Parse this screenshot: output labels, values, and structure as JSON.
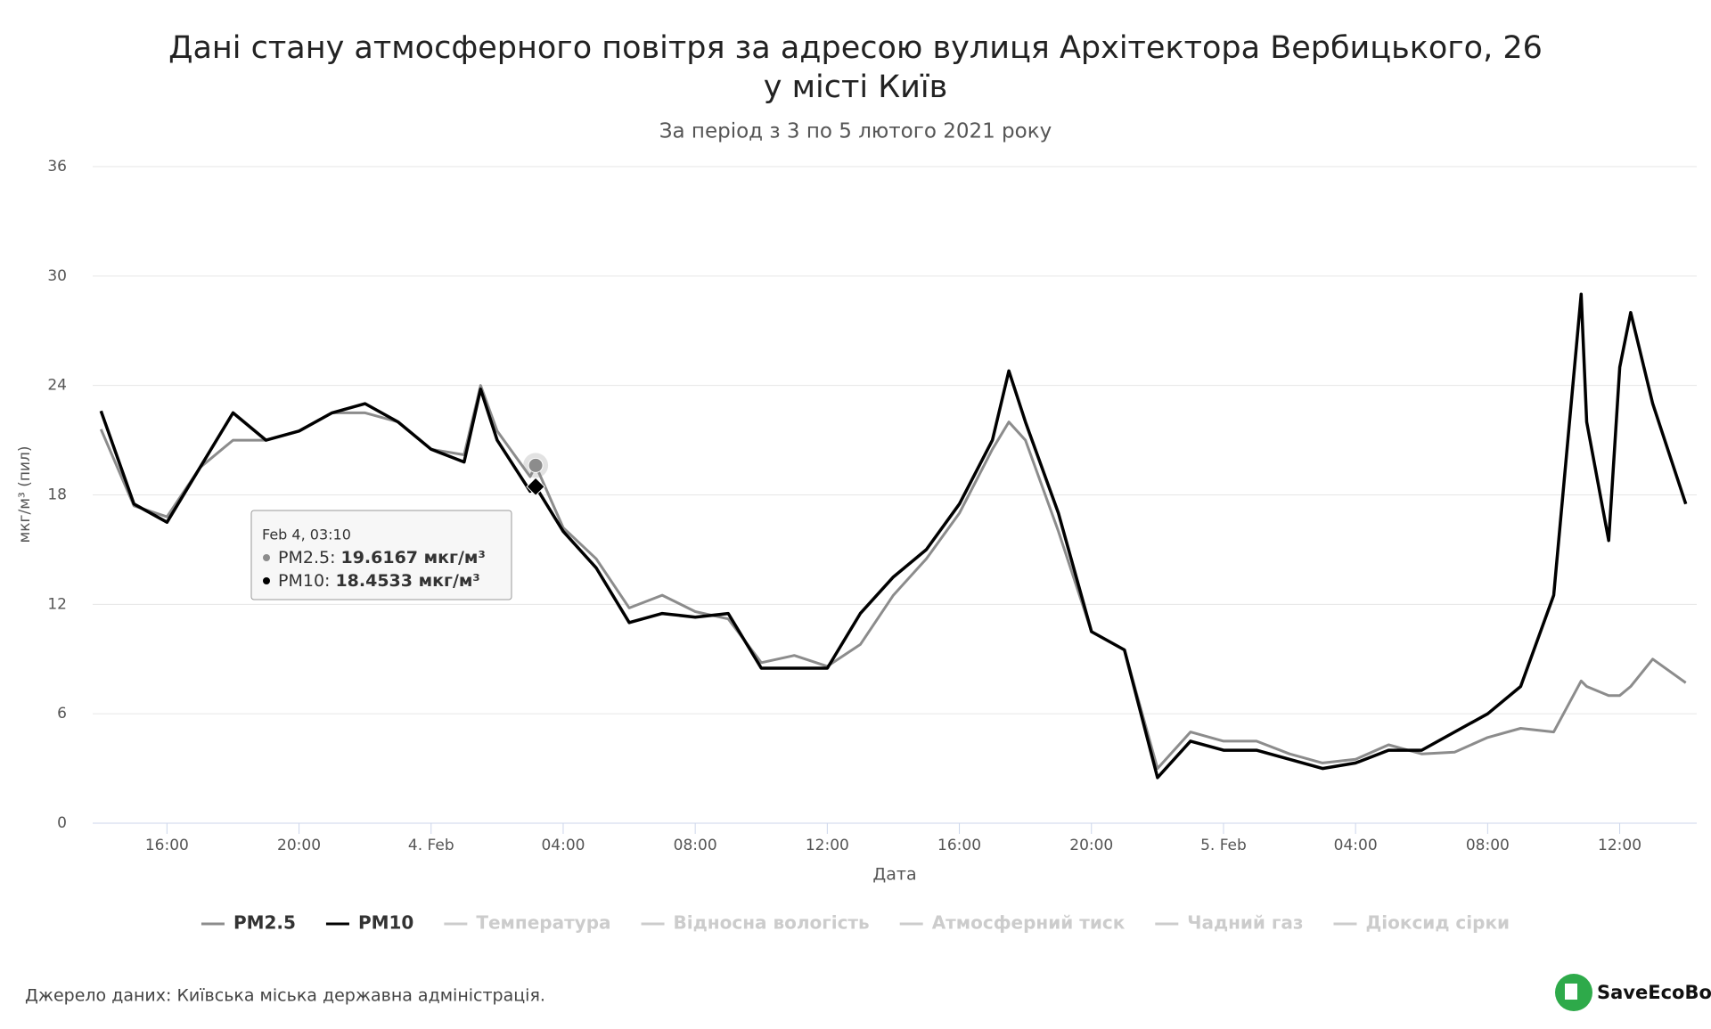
{
  "chart_data": {
    "type": "line",
    "title": [
      "Дані стану атмосферного повітря за адресою вулиця Архітектора Вербицького, 26",
      "у місті Київ"
    ],
    "subtitle": "За період з 3 по 5 лютого 2021 року",
    "x_label": "Дата",
    "y_label": "мкг/м³ (пил)",
    "x": [
      "Feb 3, 14:00",
      "Feb 3, 15:00",
      "Feb 3, 16:00",
      "Feb 3, 17:00",
      "Feb 3, 18:00",
      "Feb 3, 19:00",
      "Feb 3, 20:00",
      "Feb 3, 21:00",
      "Feb 3, 22:00",
      "Feb 3, 23:00",
      "Feb 4, 00:00",
      "Feb 4, 01:00",
      "Feb 4, 01:30",
      "Feb 4, 02:00",
      "Feb 4, 03:00",
      "Feb 4, 03:10",
      "Feb 4, 04:00",
      "Feb 4, 05:00",
      "Feb 4, 06:00",
      "Feb 4, 07:00",
      "Feb 4, 08:00",
      "Feb 4, 09:00",
      "Feb 4, 10:00",
      "Feb 4, 11:00",
      "Feb 4, 12:00",
      "Feb 4, 13:00",
      "Feb 4, 14:00",
      "Feb 4, 15:00",
      "Feb 4, 16:00",
      "Feb 4, 17:00",
      "Feb 4, 17:30",
      "Feb 4, 18:00",
      "Feb 4, 19:00",
      "Feb 4, 20:00",
      "Feb 4, 21:00",
      "Feb 4, 22:00",
      "Feb 4, 23:00",
      "Feb 5, 00:00",
      "Feb 5, 01:00",
      "Feb 5, 02:00",
      "Feb 5, 03:00",
      "Feb 5, 04:00",
      "Feb 5, 05:00",
      "Feb 5, 06:00",
      "Feb 5, 07:00",
      "Feb 5, 08:00",
      "Feb 5, 09:00",
      "Feb 5, 10:00",
      "Feb 5, 10:50",
      "Feb 5, 11:00",
      "Feb 5, 11:40",
      "Feb 5, 12:00",
      "Feb 5, 12:20",
      "Feb 5, 13:00",
      "Feb 5, 14:00"
    ],
    "series": [
      {
        "name": "PM2.5",
        "color": "#8c8c8c",
        "values": [
          21.6,
          17.4,
          16.8,
          19.5,
          21.0,
          21.0,
          21.5,
          22.5,
          22.5,
          22.0,
          20.5,
          20.2,
          24.0,
          21.5,
          19.0,
          19.6167,
          16.2,
          14.5,
          11.8,
          12.5,
          11.6,
          11.2,
          8.8,
          9.2,
          8.6,
          9.8,
          12.5,
          14.5,
          17.0,
          20.5,
          22.0,
          21.0,
          16.0,
          10.5,
          9.5,
          3.0,
          5.0,
          4.5,
          4.5,
          3.8,
          3.3,
          3.5,
          4.3,
          3.8,
          3.9,
          4.7,
          5.2,
          5.0,
          7.8,
          7.5,
          7.0,
          7.0,
          7.5,
          9.0,
          7.7
        ]
      },
      {
        "name": "PM10",
        "color": "#000000",
        "values": [
          22.6,
          17.5,
          16.5,
          19.5,
          22.5,
          21.0,
          21.5,
          22.5,
          23.0,
          22.0,
          20.5,
          19.8,
          23.8,
          21.0,
          18.2,
          18.4533,
          16.0,
          14.0,
          11.0,
          11.5,
          11.3,
          11.5,
          8.5,
          8.5,
          8.5,
          11.5,
          13.5,
          15.0,
          17.5,
          21.0,
          24.8,
          22.0,
          17.0,
          10.5,
          9.5,
          2.5,
          4.5,
          4.0,
          4.0,
          3.5,
          3.0,
          3.3,
          4.0,
          4.0,
          5.0,
          6.0,
          7.5,
          12.5,
          29.0,
          22.0,
          15.5,
          25.0,
          28.0,
          23.0,
          17.5
        ]
      }
    ],
    "legend_hidden": [
      "Температура",
      "Відносна вологість",
      "Атмосферний тиск",
      "Чадний газ",
      "Діоксид сірки"
    ],
    "hidden_color": "#cccccc",
    "ylim": [
      0,
      36
    ],
    "yticks": [
      0,
      6,
      12,
      18,
      24,
      30,
      36
    ],
    "xlim": [
      "Feb 3, 13:45",
      "Feb 5, 14:20"
    ],
    "xticks": [
      {
        "value": "Feb 3, 16:00",
        "label": "16:00"
      },
      {
        "value": "Feb 3, 20:00",
        "label": "20:00"
      },
      {
        "value": "Feb 4, 00:00",
        "label": "4. Feb"
      },
      {
        "value": "Feb 4, 04:00",
        "label": "04:00"
      },
      {
        "value": "Feb 4, 08:00",
        "label": "08:00"
      },
      {
        "value": "Feb 4, 12:00",
        "label": "12:00"
      },
      {
        "value": "Feb 4, 16:00",
        "label": "16:00"
      },
      {
        "value": "Feb 4, 20:00",
        "label": "20:00"
      },
      {
        "value": "Feb 5, 00:00",
        "label": "5. Feb"
      },
      {
        "value": "Feb 5, 04:00",
        "label": "04:00"
      },
      {
        "value": "Feb 5, 08:00",
        "label": "08:00"
      },
      {
        "value": "Feb 5, 12:00",
        "label": "12:00"
      }
    ],
    "grid": true,
    "tooltip": {
      "title": "Feb 4, 03:10",
      "rows": [
        {
          "label": "PM2.5:",
          "value": "19.6167 мкг/м³"
        },
        {
          "label": "PM10:",
          "value": "18.4533 мкг/м³"
        }
      ]
    }
  },
  "footer": {
    "source": "Джерело даних: Київська міська державна адміністрація.",
    "logo": "SaveEcoBot"
  }
}
